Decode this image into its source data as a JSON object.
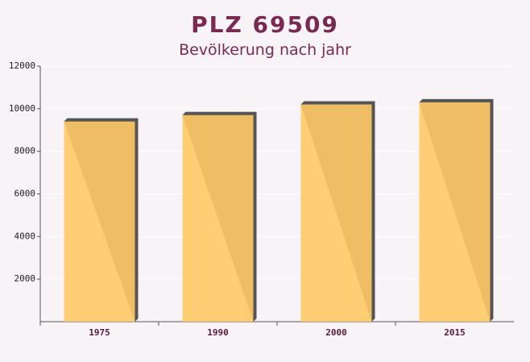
{
  "chart_data": {
    "type": "bar",
    "title": "PLZ 69509",
    "subtitle": "Bevölkerung nach jahr",
    "categories": [
      "1975",
      "1990",
      "2000",
      "2015"
    ],
    "values": [
      9400,
      9700,
      10200,
      10300
    ],
    "color": "#ffc966",
    "ylim": [
      0,
      12000
    ],
    "yticks": [
      2000,
      4000,
      6000,
      8000,
      10000,
      12000
    ],
    "grid": true
  }
}
